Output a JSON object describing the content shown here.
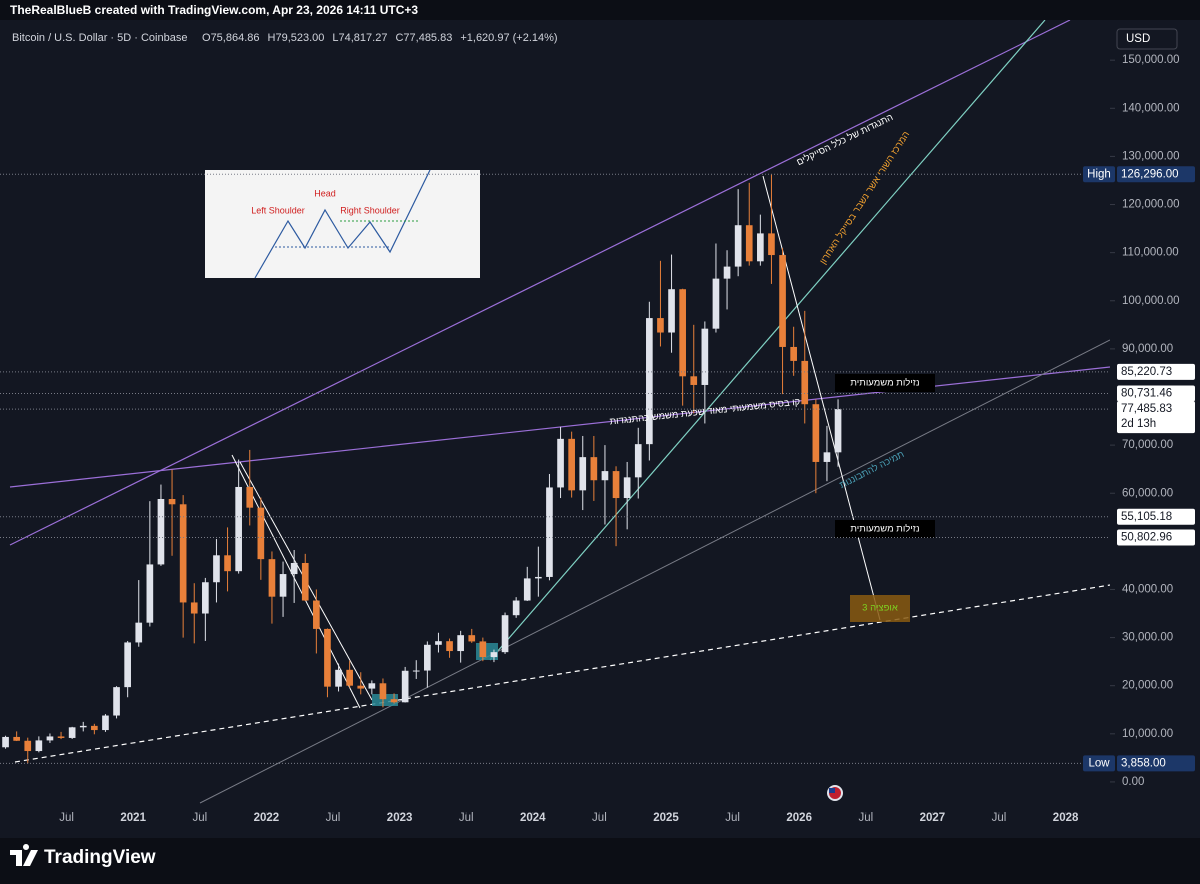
{
  "header": {
    "credit": "TheRealBlueB created with TradingView.com, Apr 23, 2026 14:11 UTC+3",
    "symbol": "Bitcoin / U.S. Dollar · 5D · Coinbase",
    "ohlc": [
      [
        "O",
        "75,864.86"
      ],
      [
        "H",
        "79,523.00"
      ],
      [
        "L",
        "74,817.27"
      ],
      [
        "C",
        "77,485.83"
      ]
    ],
    "change": "+1,620.97 (+2.14%)"
  },
  "chart_data": {
    "type": "candlestick",
    "x": [
      "2020-01",
      "2020-02",
      "2020-03",
      "2020-04",
      "2020-05",
      "2020-06",
      "2020-07",
      "2020-08",
      "2020-09",
      "2020-10",
      "2020-11",
      "2020-12",
      "2021-01",
      "2021-02",
      "2021-03",
      "2021-04",
      "2021-05",
      "2021-06",
      "2021-07",
      "2021-08",
      "2021-09",
      "2021-10",
      "2021-11",
      "2021-12",
      "2022-01",
      "2022-02",
      "2022-03",
      "2022-04",
      "2022-05",
      "2022-06",
      "2022-07",
      "2022-08",
      "2022-09",
      "2022-10",
      "2022-11",
      "2022-12",
      "2023-01",
      "2023-02",
      "2023-03",
      "2023-04",
      "2023-05",
      "2023-06",
      "2023-07",
      "2023-08",
      "2023-09",
      "2023-10",
      "2023-11",
      "2023-12",
      "2024-01",
      "2024-02",
      "2024-03",
      "2024-04",
      "2024-05",
      "2024-06",
      "2024-07",
      "2024-08",
      "2024-09",
      "2024-10",
      "2024-11",
      "2024-12",
      "2025-01",
      "2025-02",
      "2025-03",
      "2025-04",
      "2025-05",
      "2025-06",
      "2025-07",
      "2025-08",
      "2025-09",
      "2025-10",
      "2025-11",
      "2025-12",
      "2026-01",
      "2026-02",
      "2026-03",
      "2026-04"
    ],
    "open": [
      7200,
      9350,
      8550,
      6420,
      8630,
      9450,
      9140,
      11350,
      11650,
      10780,
      13800,
      19700,
      28990,
      33100,
      45200,
      58800,
      57700,
      37300,
      35000,
      41500,
      47100,
      43800,
      61300,
      57000,
      46300,
      38500,
      43200,
      45500,
      37700,
      31800,
      19800,
      23300,
      20000,
      19400,
      20500,
      17200,
      16550,
      23100,
      23150,
      28500,
      29250,
      27200,
      30500,
      29200,
      25950,
      26970,
      34650,
      37700,
      42300,
      42600,
      61200,
      71300,
      60600,
      67500,
      62700,
      64600,
      59000,
      63300,
      70200,
      96400,
      93400,
      102400,
      84300,
      82500,
      94200,
      104600,
      107100,
      115700,
      108200,
      114000,
      109500,
      90400,
      87500,
      78500,
      66500,
      68500
    ],
    "high": [
      9600,
      10500,
      9200,
      9470,
      10070,
      10400,
      11450,
      12480,
      12080,
      14100,
      19900,
      29300,
      41950,
      58350,
      61800,
      64900,
      59600,
      41300,
      42400,
      50500,
      52900,
      67000,
      69000,
      59100,
      47900,
      45800,
      48200,
      47400,
      40000,
      31900,
      24600,
      25200,
      22800,
      21100,
      21500,
      18400,
      23900,
      25300,
      29200,
      31000,
      29800,
      31400,
      31800,
      30000,
      27500,
      35200,
      38400,
      44700,
      48900,
      64000,
      73800,
      72800,
      71900,
      71900,
      70000,
      65600,
      66500,
      73600,
      99800,
      108300,
      109600,
      102500,
      95000,
      95700,
      111900,
      110500,
      123200,
      124500,
      117900,
      126296,
      111000,
      94600,
      97900,
      79500,
      74000,
      79523
    ],
    "low": [
      6900,
      8500,
      3858,
      6150,
      8100,
      8900,
      8930,
      10500,
      9900,
      10400,
      13200,
      17600,
      28100,
      32300,
      44900,
      47000,
      30000,
      28800,
      29300,
      37300,
      39600,
      43300,
      53300,
      42000,
      32900,
      34300,
      37200,
      37600,
      26700,
      17600,
      18800,
      19600,
      18200,
      18200,
      15500,
      16300,
      16500,
      21400,
      19600,
      26900,
      25800,
      24800,
      28900,
      25100,
      24900,
      26600,
      34100,
      37600,
      38500,
      41900,
      59000,
      59100,
      56500,
      58400,
      53500,
      49000,
      52500,
      58900,
      66800,
      90500,
      89200,
      78200,
      76600,
      74500,
      93400,
      98200,
      105100,
      107300,
      107300,
      103500,
      80600,
      84400,
      74500,
      60000,
      62500,
      65500
    ],
    "close": [
      9350,
      8550,
      6420,
      8630,
      9450,
      9140,
      11350,
      11650,
      10780,
      13800,
      19700,
      28990,
      33100,
      45200,
      58800,
      57700,
      37300,
      35000,
      41500,
      47100,
      43800,
      61300,
      57000,
      46300,
      38500,
      43200,
      45500,
      37700,
      31800,
      19800,
      23300,
      20000,
      19400,
      20500,
      17200,
      16550,
      23100,
      23150,
      28500,
      29250,
      27200,
      30500,
      29200,
      25950,
      26970,
      34650,
      37700,
      42300,
      42600,
      61200,
      71300,
      60600,
      67500,
      62700,
      64600,
      59000,
      63300,
      70200,
      96400,
      93400,
      102400,
      84300,
      82500,
      94200,
      104600,
      107100,
      115700,
      108200,
      114000,
      109500,
      90400,
      87500,
      78500,
      66500,
      68500,
      77485.83
    ],
    "up_color": "#e0e3eb",
    "down_color": "#e8803a",
    "currency": "USD",
    "xlim": [
      "2020-01",
      "2028-05"
    ],
    "xticks": [
      {
        "value": "2020-07",
        "label": "Jul"
      },
      {
        "value": "2021-01",
        "label": "2021"
      },
      {
        "value": "2021-07",
        "label": "Jul"
      },
      {
        "value": "2022-01",
        "label": "2022"
      },
      {
        "value": "2022-07",
        "label": "Jul"
      },
      {
        "value": "2023-01",
        "label": "2023"
      },
      {
        "value": "2023-07",
        "label": "Jul"
      },
      {
        "value": "2024-01",
        "label": "2024"
      },
      {
        "value": "2024-07",
        "label": "Jul"
      },
      {
        "value": "2025-01",
        "label": "2025"
      },
      {
        "value": "2025-07",
        "label": "Jul"
      },
      {
        "value": "2026-01",
        "label": "2026"
      },
      {
        "value": "2026-07",
        "label": "Jul"
      },
      {
        "value": "2027-01",
        "label": "2027"
      },
      {
        "value": "2027-07",
        "label": "Jul"
      },
      {
        "value": "2028-01",
        "label": "2028"
      }
    ],
    "ylim": [
      -6250,
      158350
    ],
    "yticks": [
      {
        "value": 0,
        "label": "0.00"
      },
      {
        "value": 10000,
        "label": "10,000.00"
      },
      {
        "value": 20000,
        "label": "20,000.00"
      },
      {
        "value": 30000,
        "label": "30,000.00"
      },
      {
        "value": 40000,
        "label": "40,000.00"
      },
      {
        "value": 60000,
        "label": "60,000.00"
      },
      {
        "value": 70000,
        "label": "70,000.00"
      },
      {
        "value": 90000,
        "label": "90,000.00"
      },
      {
        "value": 100000,
        "label": "100,000.00"
      },
      {
        "value": 110000,
        "label": "110,000.00"
      },
      {
        "value": 120000,
        "label": "120,000.00"
      },
      {
        "value": 130000,
        "label": "130,000.00"
      },
      {
        "value": 140000,
        "label": "140,000.00"
      },
      {
        "value": 150000,
        "label": "150,000.00"
      }
    ],
    "price_levels": [
      {
        "value": 126296,
        "label": "126,296.00",
        "name": "High"
      },
      {
        "value": 85220.73,
        "label": "85,220.73"
      },
      {
        "value": 80731.46,
        "label": "80,731.46"
      },
      {
        "value": 77485.83,
        "label": "77,485.83",
        "sub": "2d 13h"
      },
      {
        "value": 55105.18,
        "label": "55,105.18"
      },
      {
        "value": 50802.96,
        "label": "50,802.96"
      },
      {
        "value": 3858,
        "label": "3,858.00",
        "name": "Low"
      }
    ],
    "annotations": [
      {
        "text": "התנגדות של כלל הסייקלים",
        "color": "#ffffff"
      },
      {
        "text": "המרכז השורי אשר נשבר בסייקל האחרון",
        "color": "#f0a030"
      },
      {
        "text": "קו בסיס משמעותי מאוד שכעת משמש כהתנגדות",
        "color": "#ffffff"
      },
      {
        "text": "תמיכה להתבוננות",
        "color": "#4a9fb5"
      },
      {
        "text": "נזילות משמעותית",
        "color": "#ffffff"
      },
      {
        "text": "נזילות משמעותית",
        "color": "#ffffff"
      },
      {
        "text": "אופציה 3",
        "color": "#7ed321"
      }
    ],
    "pattern_inset": {
      "head": "Head",
      "left_shoulder": "Left Shoulder",
      "right_shoulder": "Right Shoulder"
    }
  },
  "footer": {
    "brand": "TradingView"
  }
}
